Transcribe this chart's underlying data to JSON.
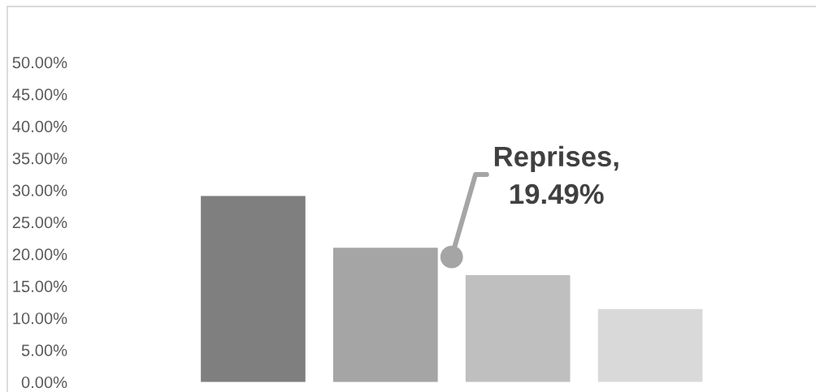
{
  "chart_data": {
    "type": "bar",
    "categories": [
      null,
      null,
      null,
      null
    ],
    "values": [
      29.1,
      21.0,
      16.7,
      11.4
    ],
    "colors": [
      "#7f7f7f",
      "#a5a5a5",
      "#bfbfbf",
      "#d9d9d9"
    ],
    "ylim": [
      0,
      50
    ],
    "yticks": [
      {
        "value": 0,
        "label": "0.00%"
      },
      {
        "value": 5,
        "label": "5.00%"
      },
      {
        "value": 10,
        "label": "10.00%"
      },
      {
        "value": 15,
        "label": "15.00%"
      },
      {
        "value": 20,
        "label": "20.00%"
      },
      {
        "value": 25,
        "label": "25.00%"
      },
      {
        "value": 30,
        "label": "30.00%"
      },
      {
        "value": 35,
        "label": "35.00%"
      },
      {
        "value": 40,
        "label": "40.00%"
      },
      {
        "value": 45,
        "label": "45.00%"
      },
      {
        "value": 50,
        "label": "50.00%"
      }
    ],
    "tick_labels": "y",
    "annotations": [
      "Reprises,\n19.49%"
    ]
  }
}
